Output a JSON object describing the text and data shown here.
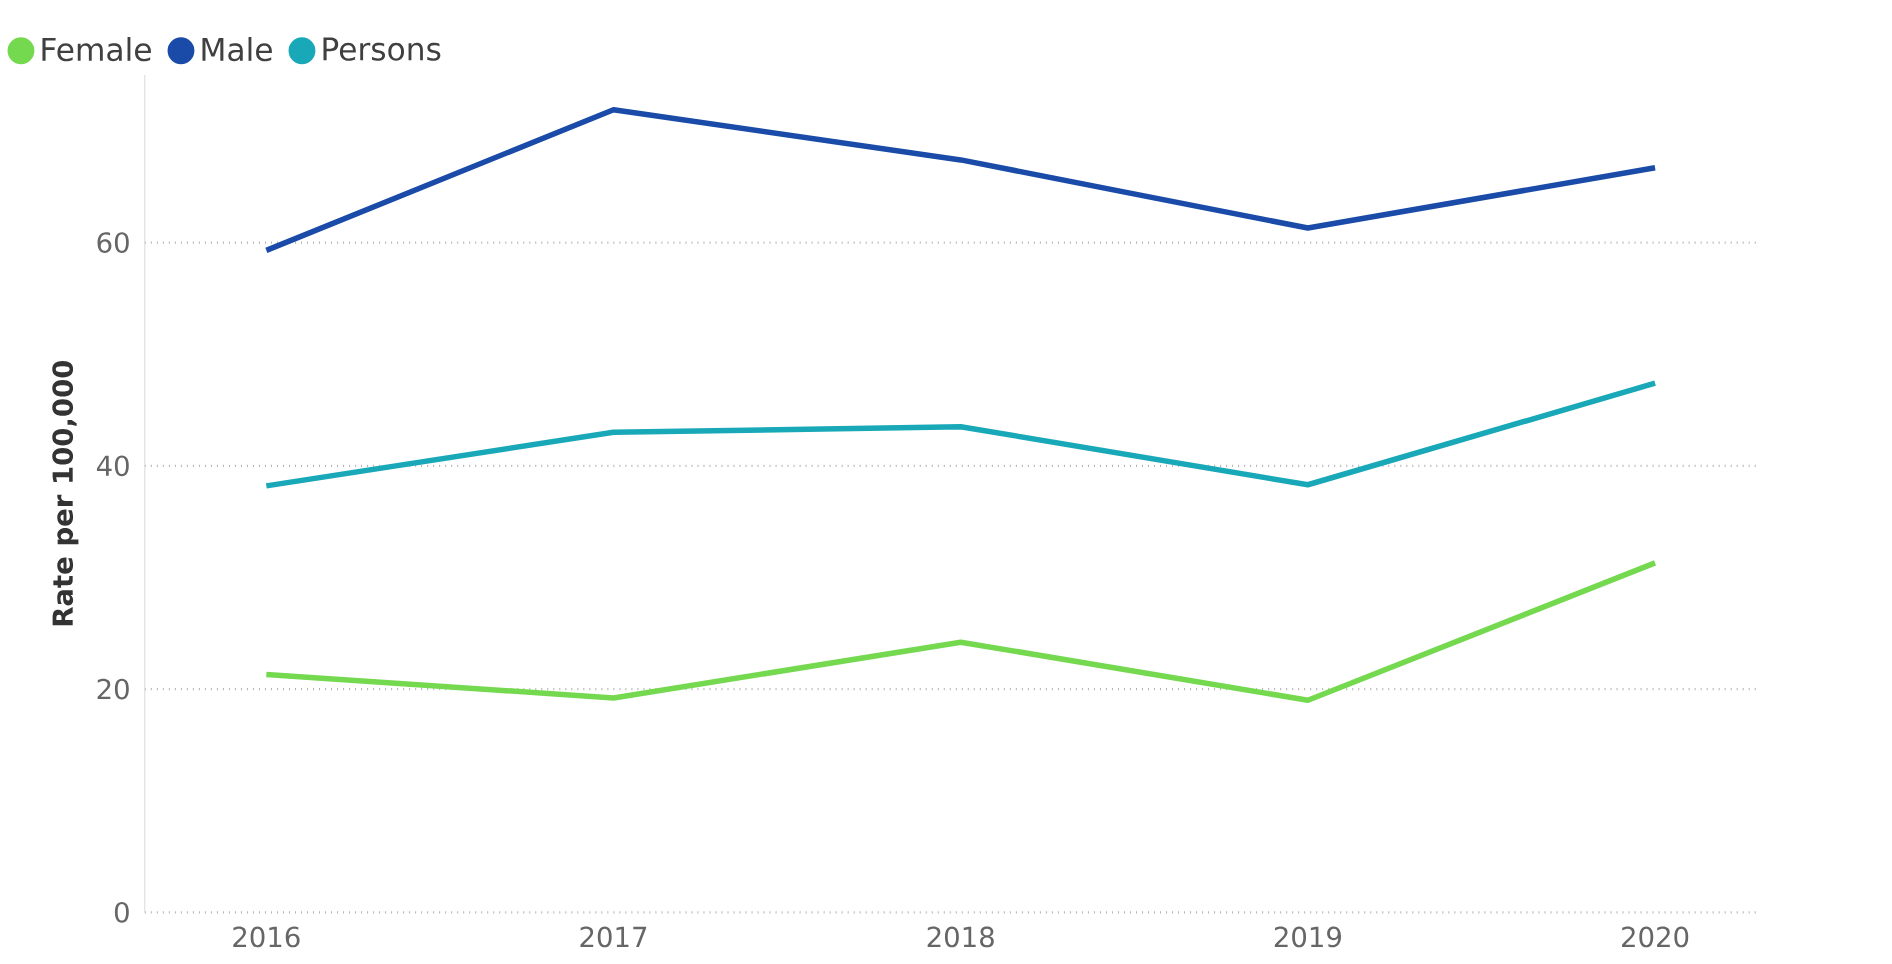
{
  "chart_data": {
    "type": "line",
    "ylabel": "Rate per 100,000",
    "categories": [
      "2016",
      "2017",
      "2018",
      "2019",
      "2020"
    ],
    "series": [
      {
        "name": "Female",
        "color": "#74d94f",
        "values": [
          21.3,
          19.2,
          24.2,
          19.0,
          31.3
        ]
      },
      {
        "name": "Male",
        "color": "#1a4ba8",
        "values": [
          59.3,
          71.9,
          67.4,
          61.3,
          66.7
        ]
      },
      {
        "name": "Persons",
        "color": "#19a8b8",
        "values": [
          38.2,
          43.0,
          43.5,
          38.3,
          47.4
        ]
      }
    ],
    "ylim": [
      0,
      75
    ],
    "yticks": [
      0,
      20,
      40,
      60
    ],
    "grid": "y",
    "legend": "top left",
    "marker": "none",
    "line_style": "solid"
  }
}
